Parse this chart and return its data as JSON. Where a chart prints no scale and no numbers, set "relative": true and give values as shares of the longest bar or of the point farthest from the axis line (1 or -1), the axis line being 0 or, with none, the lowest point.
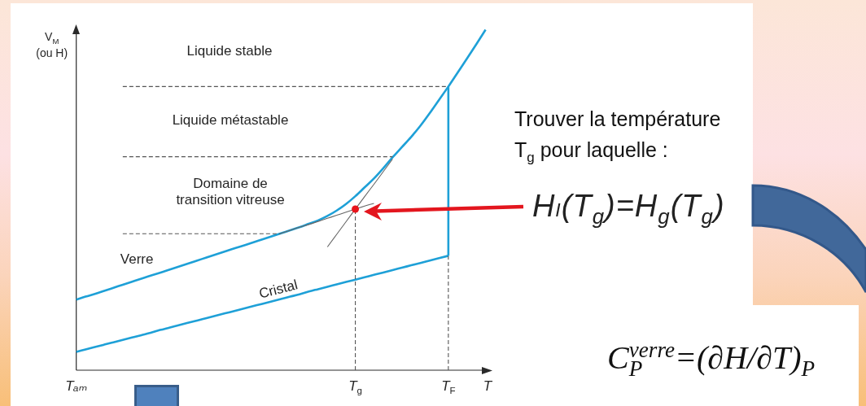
{
  "chart_data": {
    "type": "line",
    "relative": true,
    "xlabel": "T",
    "ylabel": "V$_{M}$\n(ou H)",
    "marker": "none",
    "categories": [
      "Tₐₘ",
      null,
      null,
      null,
      null,
      null,
      null,
      null,
      null,
      null,
      null,
      null,
      null,
      null,
      null,
      null,
      null,
      null,
      null,
      null,
      null,
      null,
      null,
      null,
      null,
      null,
      null,
      null,
      null,
      null,
      "T$_{g}$",
      null,
      null,
      null,
      null,
      null,
      null,
      null,
      null,
      null,
      "T$_{F}$",
      null,
      null,
      null,
      null,
      null
    ],
    "series": [
      {
        "name": "Verre",
        "color": "#1ea0d7",
        "values": [
          0.207,
          0.216,
          0.224,
          0.233,
          0.242,
          0.251,
          0.26,
          0.269,
          0.278,
          0.286,
          0.295,
          0.304,
          0.313,
          0.322,
          0.331,
          0.34,
          0.349,
          0.358,
          0.366,
          0.375,
          0.384,
          0.393,
          0.402,
          0.411,
          0.42,
          0.43,
          0.44,
          0.453,
          0.469,
          0.488,
          0.511,
          0.537,
          0.563,
          0.593,
          0.625,
          0.655,
          0.685,
          0.718,
          0.755,
          0.794,
          0.833,
          0.874,
          0.915,
          0.957,
          1,
          null
        ]
      },
      {
        "name": "Cristal",
        "color": "#1ea0d7",
        "values": [
          0.054,
          0.061,
          0.068,
          0.075,
          0.082,
          0.089,
          0.096,
          0.103,
          0.11,
          0.118,
          0.125,
          0.132,
          0.139,
          0.146,
          0.153,
          0.16,
          0.167,
          0.174,
          0.181,
          0.188,
          0.195,
          0.202,
          0.209,
          0.216,
          0.223,
          0.231,
          0.238,
          0.245,
          0.252,
          0.259,
          0.266,
          0.273,
          0.28,
          0.287,
          0.294,
          0.301,
          0.308,
          0.315,
          0.322,
          0.329,
          0.336,
          null,
          null,
          null,
          null,
          null
        ]
      },
      {
        "color": "#1ea0d7",
        "x": [
          "T$_{F}$",
          "T$_{F}$"
        ],
        "values": [
          0.336,
          0.833
        ]
      },
      {
        "color": "#555555",
        "line_style": "dashed",
        "values": [
          null,
          null,
          null,
          null,
          null,
          0.833,
          0.833,
          0.833,
          0.833,
          0.833,
          0.833,
          0.833,
          0.833,
          0.833,
          0.833,
          0.833,
          0.833,
          0.833,
          0.833,
          0.833,
          0.833,
          0.833,
          0.833,
          0.833,
          0.833,
          0.833,
          0.833,
          0.833,
          0.833,
          0.833,
          0.833,
          0.833,
          0.833,
          0.833,
          0.833,
          0.833,
          0.833,
          0.833,
          0.833,
          0.833,
          0.833,
          null,
          null,
          null,
          null,
          null
        ]
      },
      {
        "color": "#555555",
        "line_style": "dashed",
        "values": [
          null,
          null,
          null,
          null,
          null,
          0.627,
          0.627,
          0.627,
          0.627,
          0.627,
          0.627,
          0.627,
          0.627,
          0.627,
          0.627,
          0.627,
          0.627,
          0.627,
          0.627,
          0.627,
          0.627,
          0.627,
          0.627,
          0.627,
          0.627,
          0.627,
          0.627,
          0.627,
          0.627,
          0.627,
          0.627,
          0.627,
          0.627,
          0.627,
          0.627,
          null,
          null,
          null,
          null,
          null,
          null,
          null,
          null,
          null,
          null,
          null
        ]
      },
      {
        "color": "#555555",
        "line_style": "dashed",
        "values": [
          null,
          null,
          null,
          null,
          null,
          0.401,
          0.401,
          0.401,
          0.401,
          0.401,
          0.401,
          0.401,
          0.401,
          0.401,
          0.401,
          0.401,
          0.401,
          0.401,
          0.401,
          0.401,
          0.401,
          0.401,
          0.401,
          null,
          null,
          null,
          null,
          null,
          null,
          null,
          null,
          null,
          null,
          null,
          null,
          null,
          null,
          null,
          null,
          null,
          null,
          null,
          null,
          null,
          null,
          null
        ]
      },
      {
        "color": "#666666",
        "values": [
          null,
          null,
          null,
          null,
          null,
          null,
          null,
          null,
          null,
          null,
          null,
          null,
          null,
          null,
          null,
          null,
          null,
          null,
          null,
          null,
          null,
          null,
          0.402,
          0.411,
          0.42,
          0.428,
          0.437,
          0.446,
          0.455,
          0.464,
          0.473,
          0.482,
          0.49,
          null,
          null,
          null,
          null,
          null,
          null,
          null,
          null,
          null,
          null,
          null,
          null,
          null
        ]
      },
      {
        "color": "#666666",
        "values": [
          null,
          null,
          null,
          null,
          null,
          null,
          null,
          null,
          null,
          null,
          null,
          null,
          null,
          null,
          null,
          null,
          null,
          null,
          null,
          null,
          null,
          null,
          null,
          null,
          null,
          null,
          null,
          0.362,
          0.399,
          0.436,
          0.473,
          0.51,
          0.546,
          0.583,
          0.62,
          null,
          null,
          null,
          null,
          null,
          null,
          null,
          null,
          null,
          null,
          null
        ]
      },
      {
        "color": "#555555",
        "line_style": "dashed",
        "x": [
          "T$_{g}$",
          "T$_{g}$"
        ],
        "values": [
          0,
          0.473
        ]
      },
      {
        "color": "#555555",
        "line_style": "dashed",
        "x": [
          "T$_{F}$",
          "T$_{F}$"
        ],
        "values": [
          0,
          0.336
        ]
      },
      {
        "type": "scatter",
        "color": "#e8141c",
        "marker": "circle",
        "x": [
          "T$_{g}$"
        ],
        "values": [
          0.473
        ]
      }
    ],
    "annotations": [
      "Liquide stable",
      "Liquide métastable",
      "Domaine de transition vitreuse",
      "Trouver la température T$_{g}$ pour laquelle :",
      "Hₗ(T$_{g}$)=H$_{g}$(T$_{g}$)",
      "C$_{P}$$^{verre}$=(∂H/∂T)$_{P}$"
    ]
  }
}
